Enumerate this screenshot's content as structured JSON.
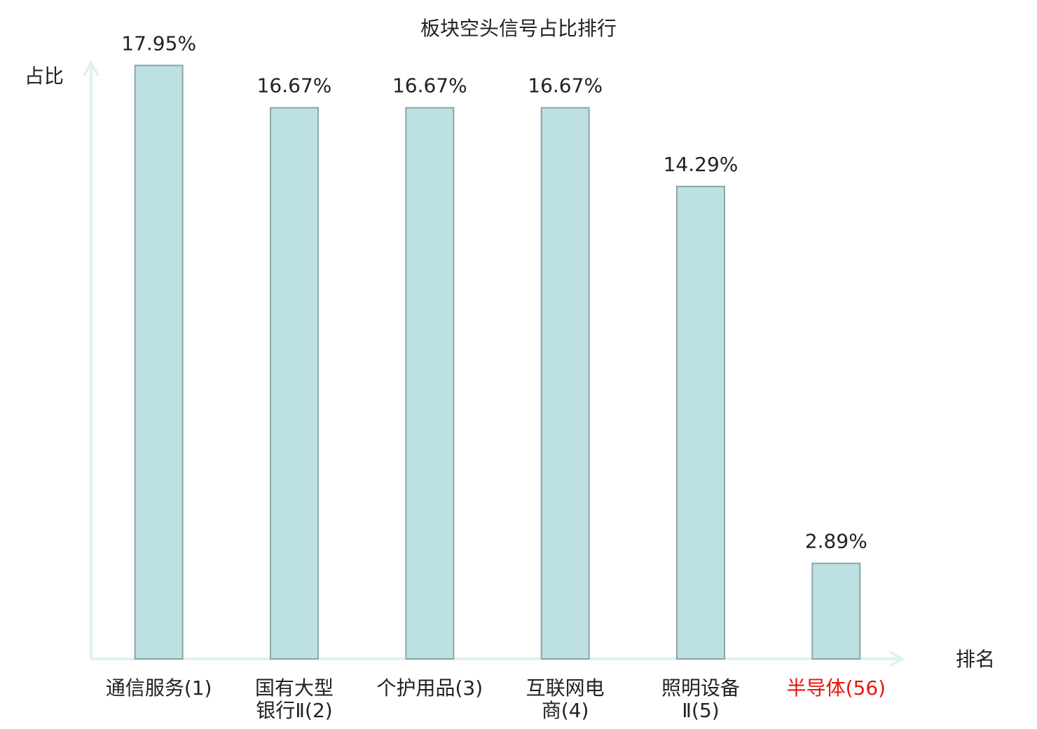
{
  "chart_data": {
    "type": "bar",
    "title": "板块空头信号占比排行",
    "x_label": "排名",
    "y_label": "占比",
    "categories": [
      "通信服务(1)",
      "国有大型\n银行Ⅱ(2)",
      "个护用品(3)",
      "互联网电\n商(4)",
      "照明设备\nⅡ(5)",
      "半导体(56)"
    ],
    "values": [
      17.95,
      16.67,
      16.67,
      16.67,
      14.29,
      2.89
    ],
    "value_labels": [
      "17.95%",
      "16.67%",
      "16.67%",
      "16.67%",
      "14.29%",
      "2.89%"
    ],
    "color": "#bde0e3",
    "label_colors": [
      "#222222",
      "#222222",
      "#222222",
      "#222222",
      "#222222",
      "#e8140c"
    ],
    "ylim": [
      0,
      18
    ],
    "grid": false
  }
}
